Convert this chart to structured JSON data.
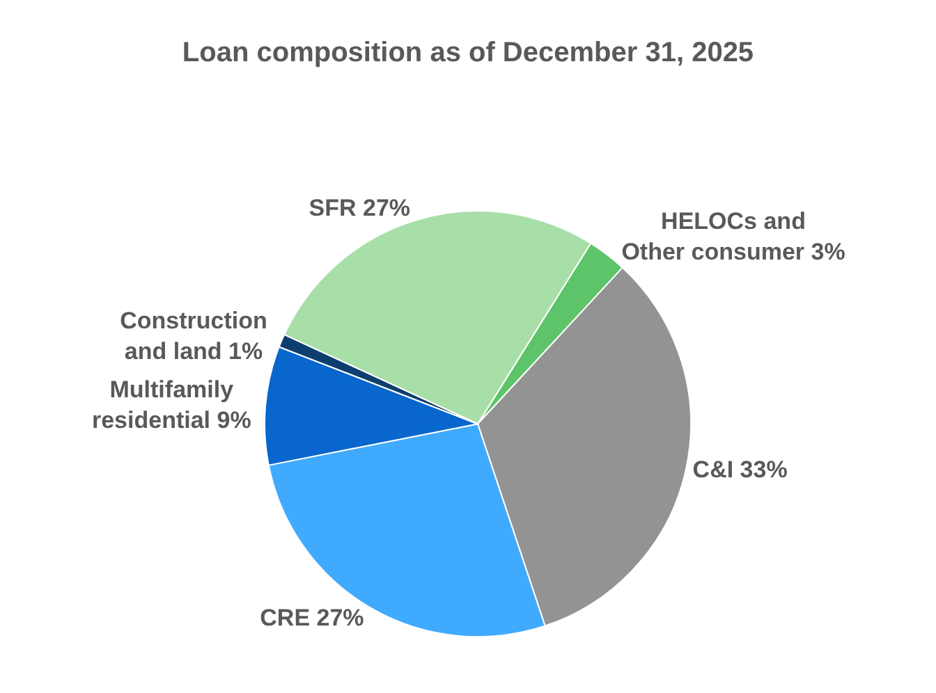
{
  "chart_data": {
    "type": "pie",
    "title": "Loan composition as of December 31, 2025",
    "categories": [
      "HELOCs and\nOther consumer",
      "C&I",
      "CRE",
      "Multifamily\nresidential",
      "Construction\nand land",
      "SFR"
    ],
    "values": [
      3,
      33,
      27,
      9,
      1,
      27
    ],
    "colors": [
      "#5ec46a",
      "#939393",
      "#40aaff",
      "#0866cc",
      "#0c3f6e",
      "#a8dfa8"
    ],
    "value_labels": [
      "3%",
      "33%",
      "27%",
      "9%",
      "1%",
      "27%"
    ],
    "legend": false
  }
}
